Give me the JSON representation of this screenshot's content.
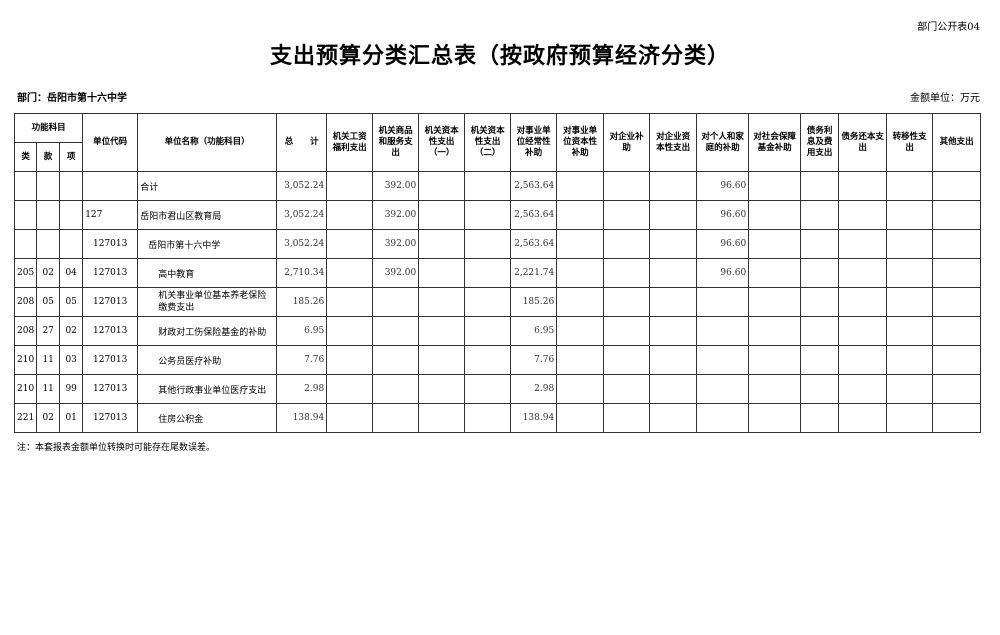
{
  "form_code": "部门公开表04",
  "title": "支出预算分类汇总表（按政府预算经济分类）",
  "department": "部门：岳阳市第十六中学",
  "amount_unit": "金额单位：万元",
  "headers": {
    "func_subject": "功能科目",
    "lei": "类",
    "kuan": "款",
    "xiang": "项",
    "unit_code": "单位代码",
    "unit_name": "单位名称（功能科目）",
    "total": "总　　计",
    "cols": [
      "机关工资福利支出",
      "机关商品和服务支出",
      "机关资本性支出（一）",
      "机关资本性支出（二）",
      "对事业单位经常性补助",
      "对事业单位资本性补助",
      "对企业补助",
      "对企业资本性支出",
      "对个人和家庭的补助",
      "对社会保障基金补助",
      "债务利息及费用支出",
      "债务还本支出",
      "转移性支出",
      "其他支出"
    ]
  },
  "rows": [
    {
      "lei": "",
      "kuan": "",
      "xiang": "",
      "code": "",
      "name": "合计",
      "total": "3,052.24",
      "vals": [
        "",
        "392.00",
        "",
        "",
        "2,563.64",
        "",
        "",
        "",
        "96.60",
        "",
        "",
        "",
        "",
        ""
      ]
    },
    {
      "lei": "",
      "kuan": "",
      "xiang": "",
      "code": "127",
      "name": "岳阳市君山区教育局",
      "total": "3,052.24",
      "vals": [
        "",
        "392.00",
        "",
        "",
        "2,563.64",
        "",
        "",
        "",
        "96.60",
        "",
        "",
        "",
        "",
        ""
      ]
    },
    {
      "lei": "",
      "kuan": "",
      "xiang": "",
      "code": "127013",
      "name": "岳阳市第十六中学",
      "total": "3,052.24",
      "vals": [
        "",
        "392.00",
        "",
        "",
        "2,563.64",
        "",
        "",
        "",
        "96.60",
        "",
        "",
        "",
        "",
        ""
      ]
    },
    {
      "lei": "205",
      "kuan": "02",
      "xiang": "04",
      "code": "127013",
      "name": "高中教育",
      "total": "2,710.34",
      "vals": [
        "",
        "392.00",
        "",
        "",
        "2,221.74",
        "",
        "",
        "",
        "96.60",
        "",
        "",
        "",
        "",
        ""
      ]
    },
    {
      "lei": "208",
      "kuan": "05",
      "xiang": "05",
      "code": "127013",
      "name": "机关事业单位基本养老保险缴费支出",
      "total": "185.26",
      "vals": [
        "",
        "",
        "",
        "",
        "185.26",
        "",
        "",
        "",
        "",
        "",
        "",
        "",
        "",
        ""
      ]
    },
    {
      "lei": "208",
      "kuan": "27",
      "xiang": "02",
      "code": "127013",
      "name": "财政对工伤保险基金的补助",
      "total": "6.95",
      "vals": [
        "",
        "",
        "",
        "",
        "6.95",
        "",
        "",
        "",
        "",
        "",
        "",
        "",
        "",
        ""
      ]
    },
    {
      "lei": "210",
      "kuan": "11",
      "xiang": "03",
      "code": "127013",
      "name": "公务员医疗补助",
      "total": "7.76",
      "vals": [
        "",
        "",
        "",
        "",
        "7.76",
        "",
        "",
        "",
        "",
        "",
        "",
        "",
        "",
        ""
      ]
    },
    {
      "lei": "210",
      "kuan": "11",
      "xiang": "99",
      "code": "127013",
      "name": "其他行政事业单位医疗支出",
      "total": "2.98",
      "vals": [
        "",
        "",
        "",
        "",
        "2.98",
        "",
        "",
        "",
        "",
        "",
        "",
        "",
        "",
        ""
      ]
    },
    {
      "lei": "221",
      "kuan": "02",
      "xiang": "01",
      "code": "127013",
      "name": "住房公积金",
      "total": "138.94",
      "vals": [
        "",
        "",
        "",
        "",
        "138.94",
        "",
        "",
        "",
        "",
        "",
        "",
        "",
        "",
        ""
      ]
    }
  ],
  "note": "注：本套报表金额单位转换时可能存在尾数误差。"
}
